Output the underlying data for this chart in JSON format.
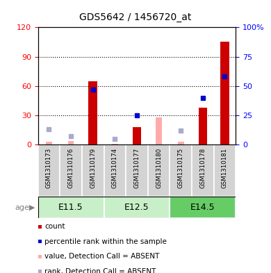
{
  "title": "GDS5642 / 1456720_at",
  "samples": [
    "GSM1310173",
    "GSM1310176",
    "GSM1310179",
    "GSM1310174",
    "GSM1310177",
    "GSM1310180",
    "GSM1310175",
    "GSM1310178",
    "GSM1310181"
  ],
  "age_groups": [
    {
      "label": "E11.5",
      "start": 0,
      "end": 3
    },
    {
      "label": "E12.5",
      "start": 3,
      "end": 6
    },
    {
      "label": "E14.5",
      "start": 6,
      "end": 9
    }
  ],
  "count_values": [
    0,
    0,
    65,
    0,
    18,
    0,
    0,
    38,
    105
  ],
  "rank_values": [
    null,
    null,
    47,
    null,
    25,
    null,
    null,
    40,
    58
  ],
  "value_absent": [
    3,
    4,
    null,
    1,
    null,
    28,
    3,
    null,
    null
  ],
  "rank_absent": [
    13,
    7,
    null,
    5,
    null,
    null,
    12,
    null,
    null
  ],
  "ylim_left": [
    0,
    120
  ],
  "ylim_right": [
    0,
    100
  ],
  "yticks_left": [
    0,
    30,
    60,
    90,
    120
  ],
  "yticks_right": [
    0,
    25,
    50,
    75,
    100
  ],
  "ytick_labels_left": [
    "0",
    "30",
    "60",
    "90",
    "120"
  ],
  "ytick_labels_right": [
    "0",
    "25",
    "50",
    "75",
    "100%"
  ],
  "color_count": "#cc0000",
  "color_rank": "#0000cc",
  "color_value_absent": "#ffaaaa",
  "color_rank_absent": "#aaaacc",
  "color_age_bg_light": "#c8f0c8",
  "color_age_bg_dark": "#66cc66",
  "color_sample_bg": "#d3d3d3",
  "legend_items": [
    {
      "color": "#cc0000",
      "label": "count"
    },
    {
      "color": "#0000cc",
      "label": "percentile rank within the sample"
    },
    {
      "color": "#ffaaaa",
      "label": "value, Detection Call = ABSENT"
    },
    {
      "color": "#aaaacc",
      "label": "rank, Detection Call = ABSENT"
    }
  ]
}
